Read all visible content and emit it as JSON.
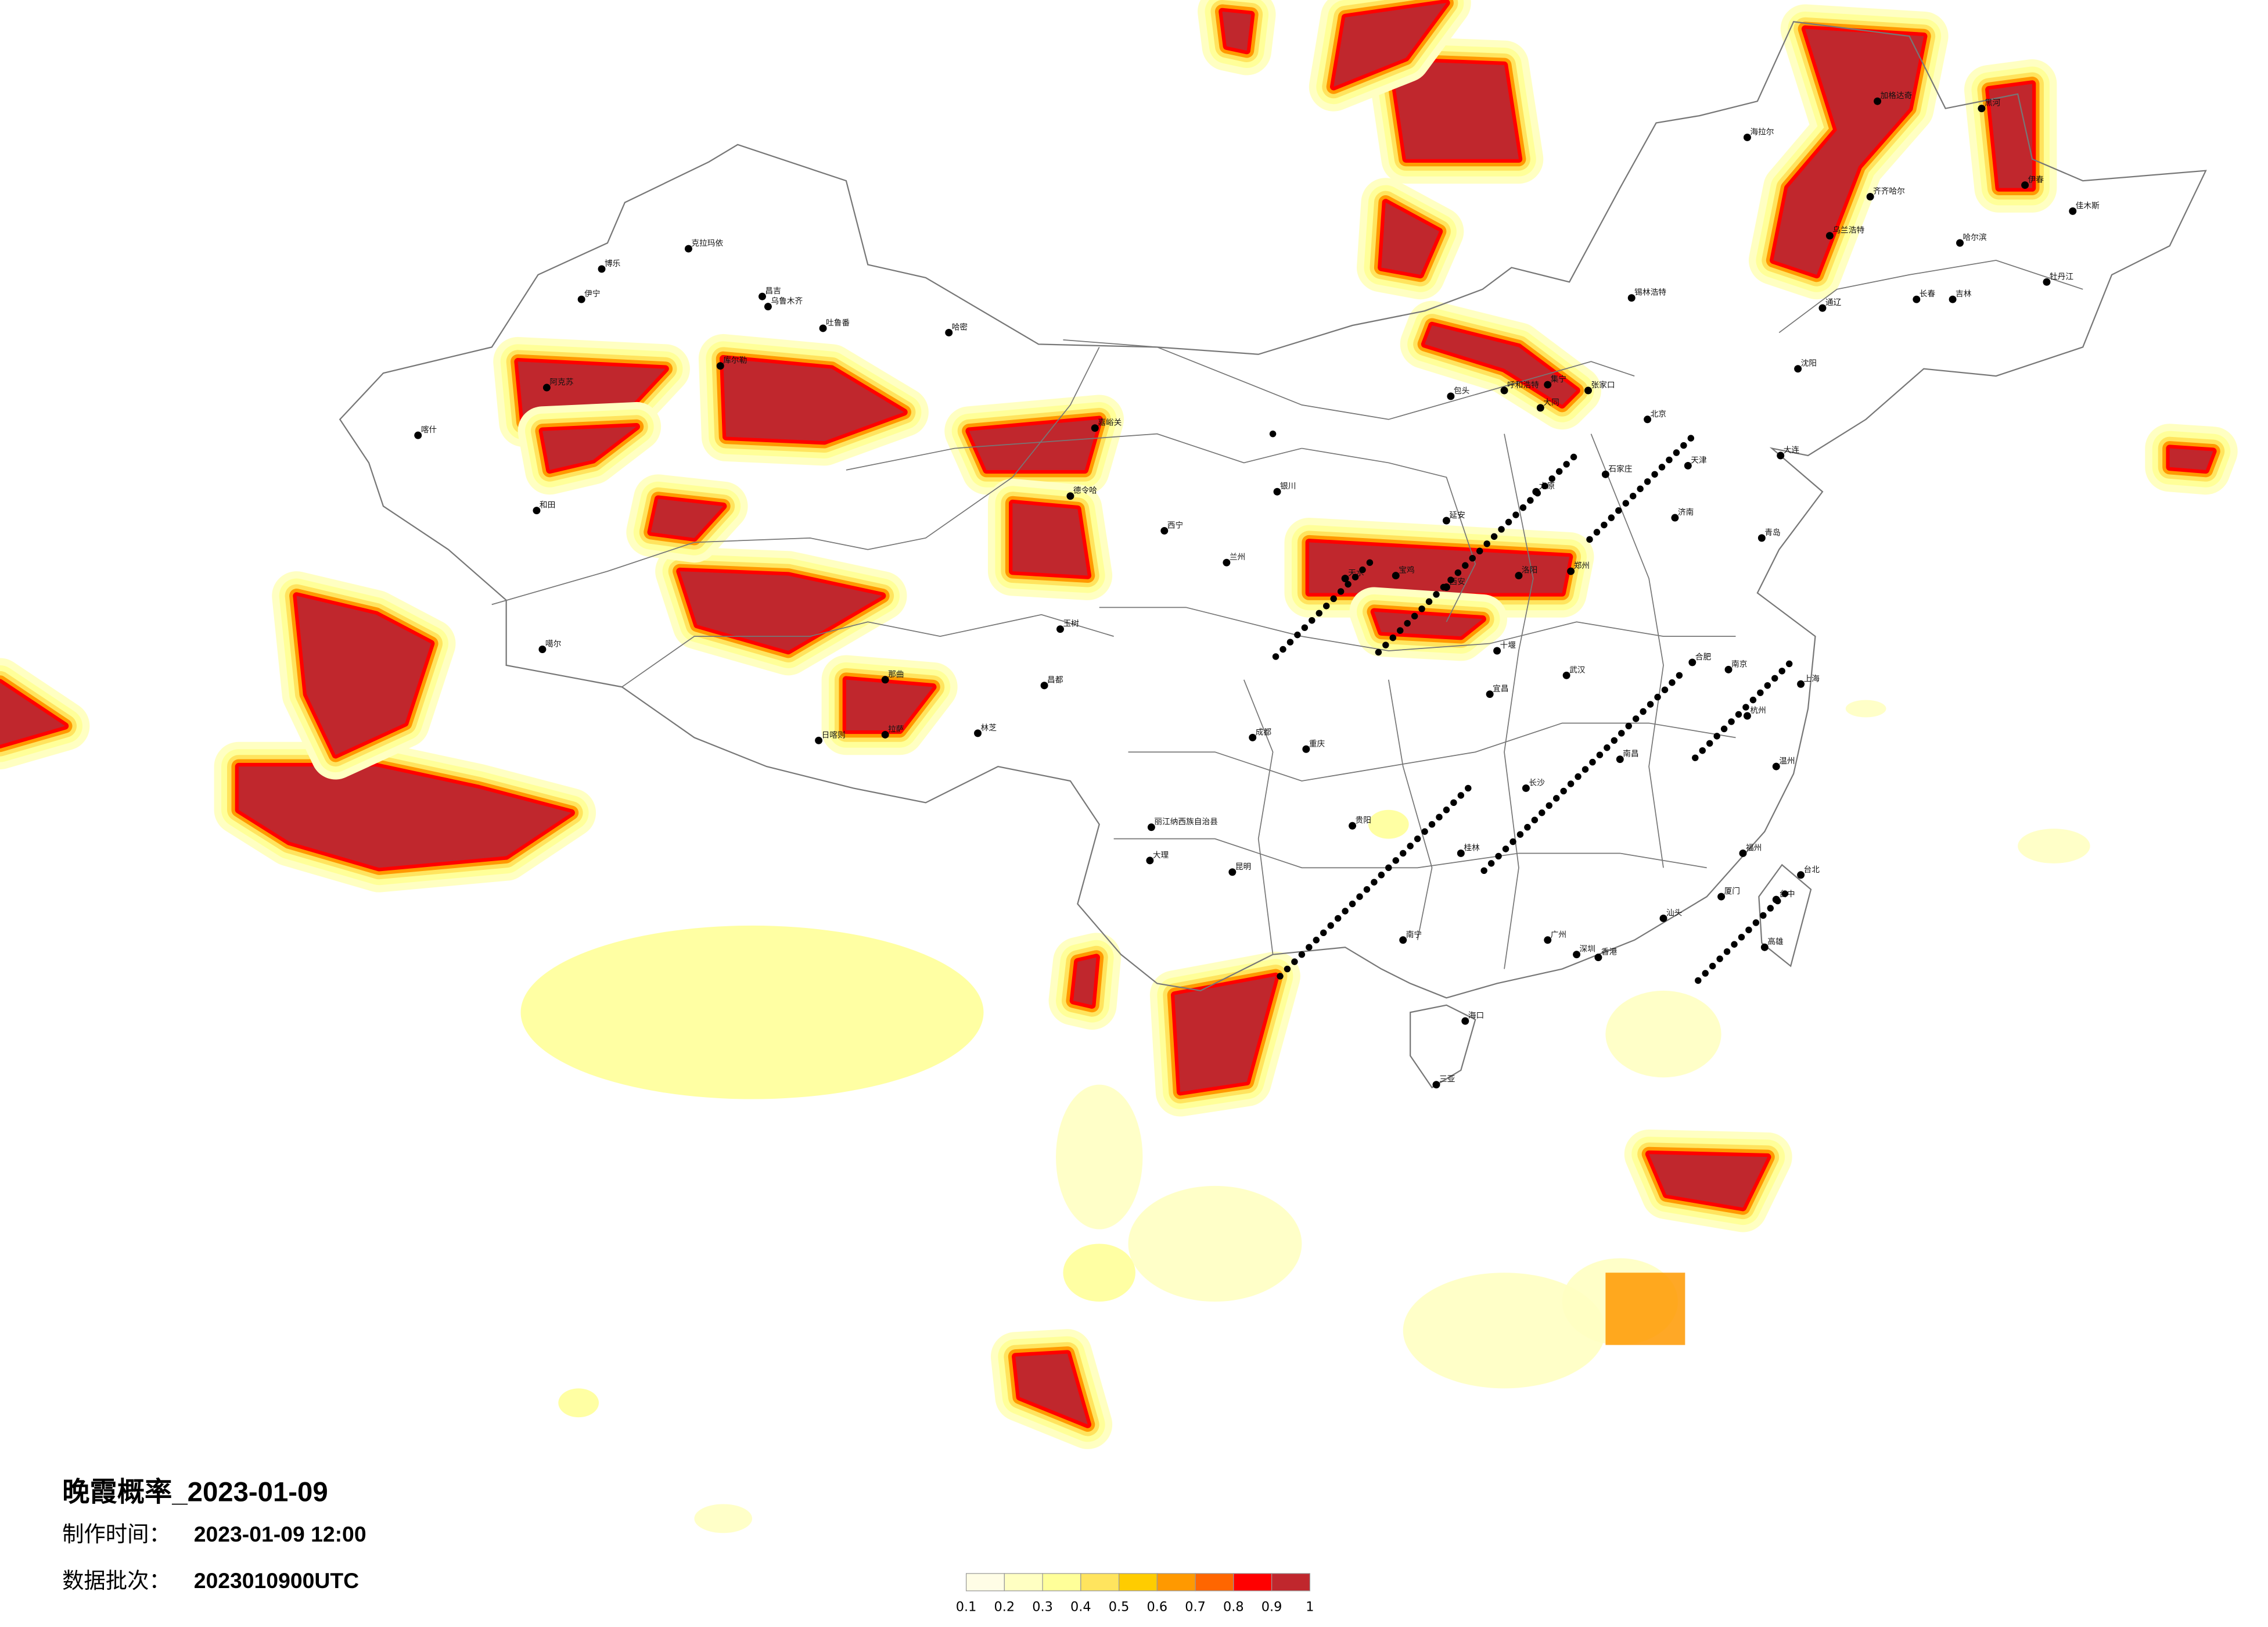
{
  "title": "晚霞概率_2023-01-09",
  "production_time_label": "制作时间：",
  "production_time": "2023-01-09 12:00",
  "batch_label": "数据批次：",
  "batch": "2023010900UTC",
  "legend": {
    "labels": [
      "0.1",
      "0.2",
      "0.3",
      "0.4",
      "0.5",
      "0.6",
      "0.7",
      "0.8",
      "0.9",
      "1"
    ],
    "colors": [
      "#fffde6",
      "#ffffc2",
      "#ffff99",
      "#ffe45e",
      "#ffcc00",
      "#ff9900",
      "#ff6600",
      "#ff0000",
      "#c0272d"
    ]
  },
  "colors": {
    "boundary": "#777777",
    "city_marker": "#000000",
    "background": "#ffffff"
  },
  "cities": [
    "克拉玛依",
    "博乐",
    "伊宁",
    "昌吉",
    "乌鲁木齐",
    "吐鲁番",
    "哈密",
    "阿克苏",
    "库尔勒",
    "和田",
    "喀什",
    "噶尔",
    "那曲",
    "拉萨",
    "日喀则",
    "林芝",
    "昌都",
    "玉树",
    "德令哈",
    "嘉峪关",
    "西宁",
    "兰州",
    "银川",
    "呼和浩特",
    "包头",
    "集宁",
    "张家口",
    "大同",
    "北京",
    "天津",
    "石家庄",
    "太原",
    "延安",
    "西安",
    "宝鸡",
    "天水",
    "郑州",
    "洛阳",
    "济南",
    "青岛",
    "沈阳",
    "大连",
    "长春",
    "吉林",
    "哈尔滨",
    "齐齐哈尔",
    "海拉尔",
    "加格达奇",
    "黑河",
    "伊春",
    "佳木斯",
    "牡丹江",
    "乌兰浩特",
    "通辽",
    "锡林浩特",
    "上海",
    "南京",
    "杭州",
    "合肥",
    "武汉",
    "长沙",
    "南昌",
    "福州",
    "厦门",
    "广州",
    "深圳",
    "香港",
    "南宁",
    "海口",
    "三亚",
    "昆明",
    "贵阳",
    "成都",
    "重庆",
    "台北",
    "台中",
    "高雄",
    "汕头",
    "温州",
    "宜昌",
    "十堰",
    "桂林",
    "大理",
    "丽江纳西族自治县"
  ]
}
